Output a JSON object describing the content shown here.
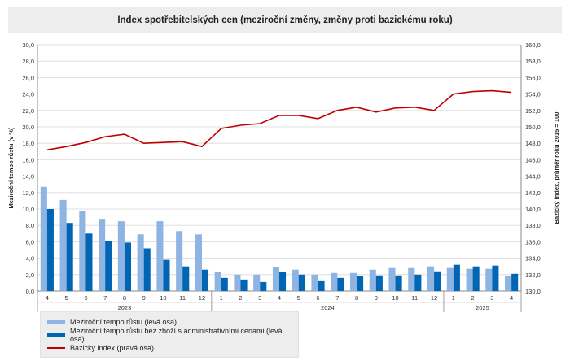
{
  "chart_data": {
    "type": "bar+line",
    "title": "Index spotřebitelských cen (meziroční změny, změny proti bazickému roku)",
    "ylabel_left": "Meziroční tempo růstu (v %)",
    "ylabel_right": "Bazický index, průměr roku 2015 = 100",
    "ylim_left": [
      0,
      30
    ],
    "ylim_right": [
      130,
      160
    ],
    "yticks_left": [
      "0,0",
      "2,0",
      "4,0",
      "6,0",
      "8,0",
      "10,0",
      "12,0",
      "14,0",
      "16,0",
      "18,0",
      "20,0",
      "22,0",
      "24,0",
      "26,0",
      "28,0",
      "30,0"
    ],
    "yticks_right": [
      "130,0",
      "132,0",
      "134,0",
      "136,0",
      "138,0",
      "140,0",
      "142,0",
      "144,0",
      "146,0",
      "148,0",
      "150,0",
      "152,0",
      "154,0",
      "156,0",
      "158,0",
      "160,0"
    ],
    "categories": [
      "4",
      "5",
      "6",
      "7",
      "8",
      "9",
      "10",
      "11",
      "12",
      "1",
      "2",
      "3",
      "4",
      "5",
      "6",
      "7",
      "8",
      "9",
      "10",
      "11",
      "12",
      "1",
      "2",
      "3",
      "4"
    ],
    "years": [
      {
        "label": "2023",
        "count": 9
      },
      {
        "label": "2024",
        "count": 12
      },
      {
        "label": "2025",
        "count": 4
      }
    ],
    "series": [
      {
        "name": "Meziroční tempo růstu (levá osa)",
        "type": "bar",
        "axis": "left",
        "color": "#8db4e2",
        "values": [
          12.7,
          11.1,
          9.7,
          8.8,
          8.5,
          6.9,
          8.5,
          7.3,
          6.9,
          2.3,
          2.0,
          2.0,
          2.9,
          2.6,
          2.0,
          2.2,
          2.2,
          2.6,
          2.8,
          2.8,
          3.0,
          2.8,
          2.7,
          2.7,
          1.8
        ]
      },
      {
        "name": "Meziroční tempo růstu bez zboží s administrativními cenami (levá osa)",
        "type": "bar",
        "axis": "left",
        "color": "#0066b3",
        "values": [
          10.0,
          8.3,
          7.0,
          6.1,
          5.9,
          5.2,
          3.8,
          3.0,
          2.6,
          1.6,
          1.4,
          1.1,
          2.3,
          2.0,
          1.3,
          1.6,
          1.8,
          1.9,
          1.9,
          2.0,
          2.4,
          3.2,
          3.0,
          3.1,
          2.1
        ]
      },
      {
        "name": "Bazický index (pravá osa)",
        "type": "line",
        "axis": "right",
        "color": "#c00000",
        "values": [
          147.2,
          147.6,
          148.1,
          148.8,
          149.1,
          148.0,
          148.1,
          148.2,
          147.6,
          149.8,
          150.2,
          150.4,
          151.4,
          151.4,
          151.0,
          152.0,
          152.4,
          151.8,
          152.3,
          152.4,
          152.0,
          154.0,
          154.3,
          154.4,
          154.2
        ]
      }
    ],
    "grid": true,
    "legend_position": "bottom-left"
  }
}
